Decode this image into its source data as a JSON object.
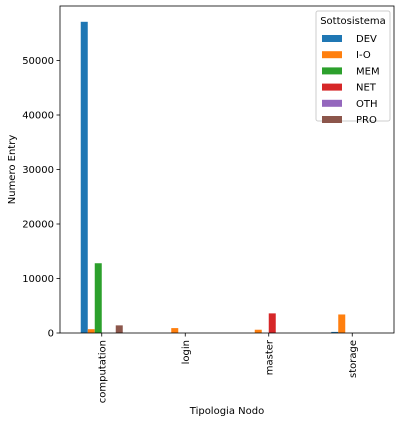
{
  "chart_data": {
    "type": "bar",
    "title": "",
    "xlabel": "Tipologia Nodo",
    "ylabel": "Numero Entry",
    "categories": [
      "computation",
      "login",
      "master",
      "storage"
    ],
    "ylim": [
      0,
      60000
    ],
    "yticks": [
      0,
      10000,
      20000,
      30000,
      40000,
      50000
    ],
    "grid": false,
    "legend": {
      "title": "Sottosistema",
      "placement": "top-right"
    },
    "series": [
      {
        "name": "DEV",
        "color": "#1f77b4",
        "values": [
          57100,
          0,
          0,
          200
        ]
      },
      {
        "name": "I-O",
        "color": "#ff7f0e",
        "values": [
          700,
          900,
          600,
          3400
        ]
      },
      {
        "name": "MEM",
        "color": "#2ca02c",
        "values": [
          12800,
          0,
          0,
          0
        ]
      },
      {
        "name": "NET",
        "color": "#d62728",
        "values": [
          0,
          0,
          3600,
          0
        ]
      },
      {
        "name": "OTH",
        "color": "#9467bd",
        "values": [
          0,
          0,
          0,
          0
        ]
      },
      {
        "name": "PRO",
        "color": "#8c564b",
        "values": [
          1400,
          0,
          0,
          0
        ]
      }
    ]
  }
}
